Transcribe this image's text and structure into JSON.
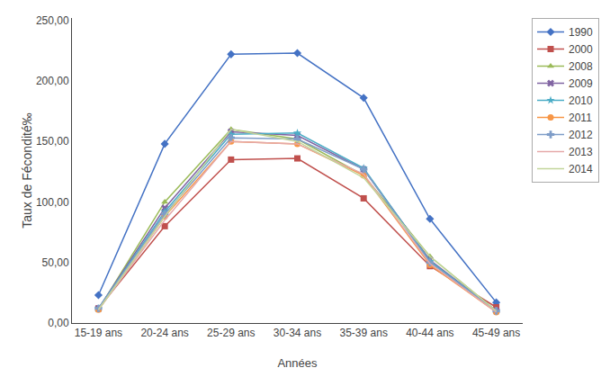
{
  "chart_data": {
    "type": "line",
    "xlabel": "Années",
    "ylabel": "Taux de Fécondité‰",
    "categories": [
      "15-19 ans",
      "20-24 ans",
      "25-29 ans",
      "30-34 ans",
      "35-39 ans",
      "40-44 ans",
      "45-49 ans"
    ],
    "series": [
      {
        "name": "1990",
        "color": "#4472C4",
        "marker": "diamond",
        "values": [
          23,
          148,
          222,
          223,
          186,
          86,
          17
        ]
      },
      {
        "name": "2000",
        "color": "#C0504D",
        "marker": "square",
        "values": [
          12,
          80,
          135,
          136,
          103,
          47,
          13
        ]
      },
      {
        "name": "2008",
        "color": "#9BBB59",
        "marker": "triangle-up",
        "values": [
          11,
          100,
          160,
          152,
          122,
          55,
          10
        ]
      },
      {
        "name": "2009",
        "color": "#8064A2",
        "marker": "x",
        "values": [
          12,
          95,
          158,
          155,
          127,
          52,
          10
        ]
      },
      {
        "name": "2010",
        "color": "#4BACC6",
        "marker": "star",
        "values": [
          12,
          92,
          156,
          157,
          128,
          51,
          10
        ]
      },
      {
        "name": "2011",
        "color": "#F79646",
        "marker": "circle",
        "values": [
          11,
          88,
          150,
          148,
          122,
          48,
          9
        ]
      },
      {
        "name": "2012",
        "color": "#7F9DC8",
        "marker": "cross",
        "values": [
          12,
          90,
          153,
          152,
          127,
          50,
          10
        ]
      },
      {
        "name": "2013",
        "color": "#E5A9A9",
        "marker": "none",
        "values": [
          11,
          85,
          150,
          148,
          123,
          49,
          9
        ]
      },
      {
        "name": "2014",
        "color": "#C3D59B",
        "marker": "none",
        "values": [
          11,
          88,
          160,
          150,
          120,
          55,
          10
        ]
      }
    ],
    "ylim": [
      0,
      252
    ],
    "yticks": [
      {
        "value": 0,
        "label": "0,00"
      },
      {
        "value": 50,
        "label": "50,00"
      },
      {
        "value": 100,
        "label": "100,00"
      },
      {
        "value": 150,
        "label": "150,00"
      },
      {
        "value": 200,
        "label": "200,00"
      },
      {
        "value": 250,
        "label": "250,00"
      }
    ],
    "grid": false,
    "legend": "upper right"
  }
}
